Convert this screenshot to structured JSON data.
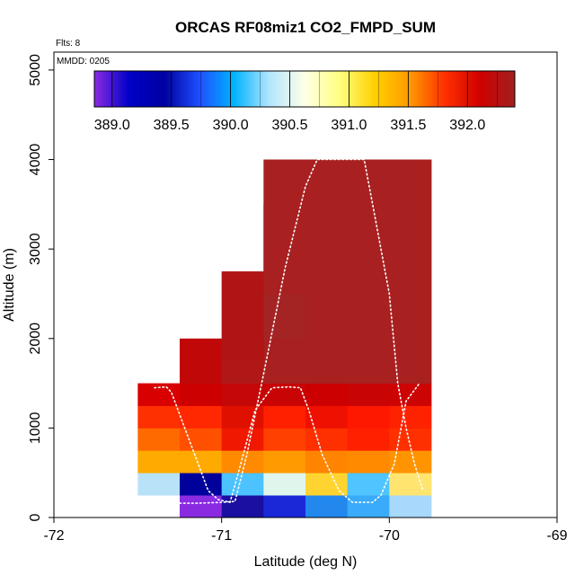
{
  "chart_data": {
    "type": "heatmap",
    "title": "ORCAS RF08miz1 CO2_FMPD_SUM",
    "annotations": {
      "flights": "Flts: 8",
      "date": "MMDD: 0205"
    },
    "xlabel": "Latitude (deg N)",
    "ylabel": "Altitude (m)",
    "xlim": [
      -72,
      -69
    ],
    "ylim": [
      0,
      5200
    ],
    "x_ticks": [
      -72,
      -71,
      -70,
      -69
    ],
    "x_tick_labels": [
      "-72",
      "-71",
      "-70",
      "-69"
    ],
    "y_ticks": [
      0,
      1000,
      2000,
      3000,
      4000,
      5000
    ],
    "y_tick_labels": [
      "0",
      "1000",
      "2000",
      "3000",
      "4000",
      "5000"
    ],
    "colorbar": {
      "min": 388.85,
      "max": 392.4,
      "ticks": [
        389.0,
        389.5,
        390.0,
        390.5,
        391.0,
        391.5,
        392.0
      ],
      "tick_labels": [
        "389.0",
        "389.5",
        "390.0",
        "390.5",
        "391.0",
        "391.5",
        "392.0"
      ],
      "colors": [
        "#8a2be2",
        "#0000c8",
        "#0000a0",
        "#1e50ff",
        "#00b4ff",
        "#b4e6ff",
        "#ffffe6",
        "#ffff80",
        "#ffd000",
        "#ff9a00",
        "#ff3000",
        "#d00000",
        "#a02020"
      ]
    },
    "cells": [
      {
        "x0": -71.25,
        "x1": -71.0,
        "y0": 0,
        "y1": 250,
        "color": "#8a2be2",
        "value": 388.9
      },
      {
        "x0": -71.0,
        "x1": -70.75,
        "y0": 0,
        "y1": 250,
        "color": "#1a0fa0",
        "value": 389.3
      },
      {
        "x0": -70.75,
        "x1": -70.5,
        "y0": 0,
        "y1": 250,
        "color": "#1a28d8",
        "value": 389.5
      },
      {
        "x0": -70.5,
        "x1": -70.25,
        "y0": 0,
        "y1": 250,
        "color": "#2288ee",
        "value": 389.8
      },
      {
        "x0": -70.25,
        "x1": -70.0,
        "y0": 0,
        "y1": 250,
        "color": "#3aaafa",
        "value": 390.0
      },
      {
        "x0": -70.0,
        "x1": -69.75,
        "y0": 0,
        "y1": 250,
        "color": "#a8d8fc",
        "value": 390.4
      },
      {
        "x0": -71.5,
        "x1": -71.25,
        "y0": 250,
        "y1": 500,
        "color": "#b8e2f8",
        "value": 390.4
      },
      {
        "x0": -71.25,
        "x1": -71.0,
        "y0": 250,
        "y1": 500,
        "color": "#00009a",
        "value": 389.4
      },
      {
        "x0": -71.0,
        "x1": -70.75,
        "y0": 250,
        "y1": 500,
        "color": "#4cc2ff",
        "value": 390.1
      },
      {
        "x0": -70.75,
        "x1": -70.5,
        "y0": 250,
        "y1": 500,
        "color": "#e0f6ec",
        "value": 390.7
      },
      {
        "x0": -70.5,
        "x1": -70.25,
        "y0": 250,
        "y1": 500,
        "color": "#ffd430",
        "value": 391.3
      },
      {
        "x0": -70.25,
        "x1": -70.0,
        "y0": 250,
        "y1": 500,
        "color": "#50c4ff",
        "value": 390.1
      },
      {
        "x0": -70.0,
        "x1": -69.75,
        "y0": 250,
        "y1": 500,
        "color": "#ffe470",
        "value": 391.1
      },
      {
        "x0": -71.5,
        "x1": -71.25,
        "y0": 500,
        "y1": 750,
        "color": "#ffaa00",
        "value": 391.5
      },
      {
        "x0": -71.25,
        "x1": -71.0,
        "y0": 500,
        "y1": 750,
        "color": "#ffaa00",
        "value": 391.5
      },
      {
        "x0": -71.0,
        "x1": -70.75,
        "y0": 500,
        "y1": 750,
        "color": "#ff8a00",
        "value": 391.6
      },
      {
        "x0": -70.75,
        "x1": -70.5,
        "y0": 500,
        "y1": 750,
        "color": "#ff9a00",
        "value": 391.6
      },
      {
        "x0": -70.5,
        "x1": -70.25,
        "y0": 500,
        "y1": 750,
        "color": "#ff8400",
        "value": 391.6
      },
      {
        "x0": -70.25,
        "x1": -70.0,
        "y0": 500,
        "y1": 750,
        "color": "#ff8a00",
        "value": 391.6
      },
      {
        "x0": -70.0,
        "x1": -69.75,
        "y0": 500,
        "y1": 750,
        "color": "#ff9400",
        "value": 391.6
      },
      {
        "x0": -71.5,
        "x1": -71.25,
        "y0": 750,
        "y1": 1000,
        "color": "#ff6a00",
        "value": 391.7
      },
      {
        "x0": -71.25,
        "x1": -71.0,
        "y0": 750,
        "y1": 1000,
        "color": "#ff5000",
        "value": 391.8
      },
      {
        "x0": -71.0,
        "x1": -70.75,
        "y0": 750,
        "y1": 1000,
        "color": "#f01800",
        "value": 391.9
      },
      {
        "x0": -70.75,
        "x1": -70.5,
        "y0": 750,
        "y1": 1000,
        "color": "#ff4000",
        "value": 391.8
      },
      {
        "x0": -70.5,
        "x1": -70.25,
        "y0": 750,
        "y1": 1000,
        "color": "#ff3000",
        "value": 391.9
      },
      {
        "x0": -70.25,
        "x1": -70.0,
        "y0": 750,
        "y1": 1000,
        "color": "#ff2000",
        "value": 391.9
      },
      {
        "x0": -70.0,
        "x1": -69.75,
        "y0": 750,
        "y1": 1000,
        "color": "#ff3000",
        "value": 391.9
      },
      {
        "x0": -71.5,
        "x1": -71.25,
        "y0": 1000,
        "y1": 1250,
        "color": "#ff3000",
        "value": 391.9
      },
      {
        "x0": -71.25,
        "x1": -71.0,
        "y0": 1000,
        "y1": 1250,
        "color": "#ff2800",
        "value": 391.9
      },
      {
        "x0": -71.0,
        "x1": -70.75,
        "y0": 1000,
        "y1": 1250,
        "color": "#e01000",
        "value": 392.0
      },
      {
        "x0": -70.75,
        "x1": -70.5,
        "y0": 1000,
        "y1": 1250,
        "color": "#ff2000",
        "value": 391.9
      },
      {
        "x0": -70.5,
        "x1": -70.25,
        "y0": 1000,
        "y1": 1250,
        "color": "#ee1000",
        "value": 392.0
      },
      {
        "x0": -70.25,
        "x1": -70.0,
        "y0": 1000,
        "y1": 1250,
        "color": "#ff1800",
        "value": 391.9
      },
      {
        "x0": -70.0,
        "x1": -69.75,
        "y0": 1000,
        "y1": 1250,
        "color": "#ff2200",
        "value": 391.9
      },
      {
        "x0": -71.5,
        "x1": -71.25,
        "y0": 1250,
        "y1": 1500,
        "color": "#d80000",
        "value": 392.1
      },
      {
        "x0": -71.25,
        "x1": -71.0,
        "y0": 1250,
        "y1": 1500,
        "color": "#cc0000",
        "value": 392.1
      },
      {
        "x0": -71.0,
        "x1": -70.75,
        "y0": 1250,
        "y1": 1500,
        "color": "#c40808",
        "value": 392.1
      },
      {
        "x0": -70.75,
        "x1": -70.5,
        "y0": 1250,
        "y1": 1500,
        "color": "#c80404",
        "value": 392.1
      },
      {
        "x0": -70.5,
        "x1": -70.25,
        "y0": 1250,
        "y1": 1500,
        "color": "#cc0000",
        "value": 392.1
      },
      {
        "x0": -70.25,
        "x1": -70.0,
        "y0": 1250,
        "y1": 1500,
        "color": "#c80404",
        "value": 392.1
      },
      {
        "x0": -70.0,
        "x1": -69.75,
        "y0": 1250,
        "y1": 1500,
        "color": "#cc0404",
        "value": 392.1
      },
      {
        "x0": -71.25,
        "x1": -71.0,
        "y0": 1500,
        "y1": 2000,
        "color": "#c00808",
        "value": 392.2
      },
      {
        "x0": -71.0,
        "x1": -70.75,
        "y0": 1500,
        "y1": 1750,
        "color": "#b01818",
        "value": 392.3
      },
      {
        "x0": -70.75,
        "x1": -69.75,
        "y0": 1500,
        "y1": 4000,
        "color": "#a82020",
        "value": 392.3
      },
      {
        "x0": -71.0,
        "x1": -70.75,
        "y0": 1750,
        "y1": 2750,
        "color": "#b01414",
        "value": 392.3
      },
      {
        "x0": -70.75,
        "x1": -70.5,
        "y0": 2000,
        "y1": 2500,
        "color": "#a42424",
        "value": 392.3
      },
      {
        "x0": -70.75,
        "x1": -70.5,
        "y0": 2500,
        "y1": 3500,
        "color": "#a82020",
        "value": 392.3
      }
    ],
    "flight_track": [
      [
        -71.4,
        1450
      ],
      [
        -71.33,
        1460
      ],
      [
        -71.3,
        1400
      ],
      [
        -71.2,
        900
      ],
      [
        -71.12,
        500
      ],
      [
        -71.08,
        300
      ],
      [
        -71.02,
        200
      ],
      [
        -70.95,
        170
      ],
      [
        -70.9,
        500
      ],
      [
        -70.8,
        1200
      ],
      [
        -70.7,
        1450
      ],
      [
        -70.6,
        1460
      ],
      [
        -70.53,
        1450
      ],
      [
        -70.48,
        1200
      ],
      [
        -70.4,
        700
      ],
      [
        -70.3,
        300
      ],
      [
        -70.22,
        170
      ],
      [
        -70.1,
        170
      ],
      [
        -70.05,
        250
      ],
      [
        -69.97,
        600
      ],
      [
        -69.9,
        1300
      ],
      [
        -69.82,
        1500
      ]
    ],
    "flight_track_2": [
      [
        -71.25,
        160
      ],
      [
        -71.15,
        160
      ],
      [
        -71.0,
        170
      ],
      [
        -70.92,
        180
      ],
      [
        -70.85,
        700
      ],
      [
        -70.75,
        1600
      ],
      [
        -70.62,
        2800
      ],
      [
        -70.5,
        3700
      ],
      [
        -70.43,
        4000
      ],
      [
        -70.3,
        4000
      ],
      [
        -70.15,
        4000
      ],
      [
        -70.1,
        3500
      ],
      [
        -70.0,
        2500
      ],
      [
        -69.95,
        1500
      ],
      [
        -69.9,
        1000
      ],
      [
        -69.85,
        600
      ],
      [
        -69.8,
        300
      ]
    ]
  }
}
